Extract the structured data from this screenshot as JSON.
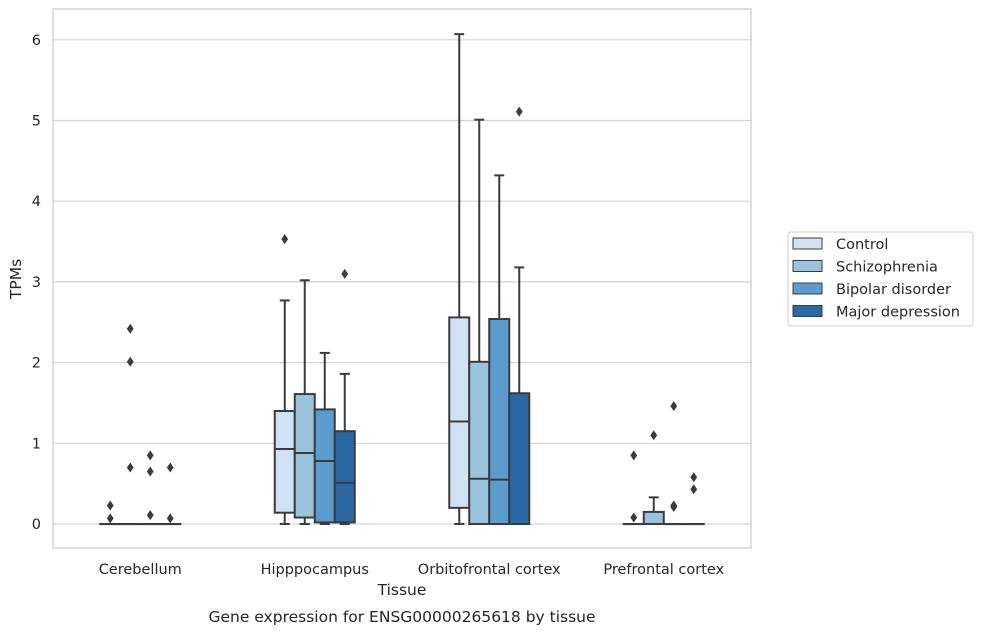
{
  "caption": "Gene expression for ENSG00000265618 by tissue",
  "chart_data": {
    "type": "box",
    "title": "",
    "xlabel": "Tissue",
    "ylabel": "TPMs",
    "ylim": [
      -0.3,
      6.4
    ],
    "yticks": [
      0,
      1,
      2,
      3,
      4,
      5,
      6
    ],
    "grid": "horizontal",
    "legend_position": "right",
    "categories": [
      "Cerebellum",
      "Hipppocampus",
      "Orbitofrontal cortex",
      "Prefrontal cortex"
    ],
    "series": [
      {
        "name": "Control",
        "color": "#d0e2f2",
        "boxes": [
          {
            "q1": 0,
            "median": 0,
            "q3": 0,
            "whisker_low": 0,
            "whisker_high": 0,
            "outliers": [
              0.07,
              0.23
            ]
          },
          {
            "q1": 0.14,
            "median": 0.93,
            "q3": 1.4,
            "whisker_low": 0,
            "whisker_high": 2.77,
            "outliers": [
              3.53
            ]
          },
          {
            "q1": 0.2,
            "median": 1.27,
            "q3": 2.56,
            "whisker_low": 0,
            "whisker_high": 6.07,
            "outliers": []
          },
          {
            "q1": 0,
            "median": 0,
            "q3": 0,
            "whisker_low": 0,
            "whisker_high": 0,
            "outliers": [
              0.08,
              0.85
            ]
          }
        ]
      },
      {
        "name": "Schizophrenia",
        "color": "#9ac4de",
        "boxes": [
          {
            "q1": 0,
            "median": 0,
            "q3": 0,
            "whisker_low": 0,
            "whisker_high": 0,
            "outliers": [
              0.7,
              2.01,
              2.42
            ]
          },
          {
            "q1": 0.08,
            "median": 0.88,
            "q3": 1.61,
            "whisker_low": 0,
            "whisker_high": 3.02,
            "outliers": []
          },
          {
            "q1": 0,
            "median": 0.56,
            "q3": 2.01,
            "whisker_low": 0,
            "whisker_high": 5.01,
            "outliers": []
          },
          {
            "q1": 0,
            "median": 0,
            "q3": 0.15,
            "whisker_low": 0,
            "whisker_high": 0.33,
            "outliers": [
              1.1
            ]
          }
        ]
      },
      {
        "name": "Bipolar disorder",
        "color": "#5a9ccd",
        "boxes": [
          {
            "q1": 0,
            "median": 0,
            "q3": 0,
            "whisker_low": 0,
            "whisker_high": 0,
            "outliers": [
              0.11,
              0.65,
              0.85
            ]
          },
          {
            "q1": 0.02,
            "median": 0.78,
            "q3": 1.42,
            "whisker_low": 0,
            "whisker_high": 2.12,
            "outliers": []
          },
          {
            "q1": 0,
            "median": 0.55,
            "q3": 2.54,
            "whisker_low": 0,
            "whisker_high": 4.32,
            "outliers": []
          },
          {
            "q1": 0,
            "median": 0,
            "q3": 0,
            "whisker_low": 0,
            "whisker_high": 0,
            "outliers": [
              0.21,
              0.23,
              1.46
            ]
          }
        ]
      },
      {
        "name": "Major depression",
        "color": "#2a68a6",
        "boxes": [
          {
            "q1": 0,
            "median": 0,
            "q3": 0,
            "whisker_low": 0,
            "whisker_high": 0,
            "outliers": [
              0.07,
              0.7
            ]
          },
          {
            "q1": 0.02,
            "median": 0.51,
            "q3": 1.15,
            "whisker_low": 0,
            "whisker_high": 1.86,
            "outliers": [
              3.1
            ]
          },
          {
            "q1": 0,
            "median": 0,
            "q3": 1.62,
            "whisker_low": 0,
            "whisker_high": 3.18,
            "outliers": [
              5.11
            ]
          },
          {
            "q1": 0,
            "median": 0,
            "q3": 0,
            "whisker_low": 0,
            "whisker_high": 0,
            "outliers": [
              0.43,
              0.58
            ]
          }
        ]
      }
    ]
  }
}
